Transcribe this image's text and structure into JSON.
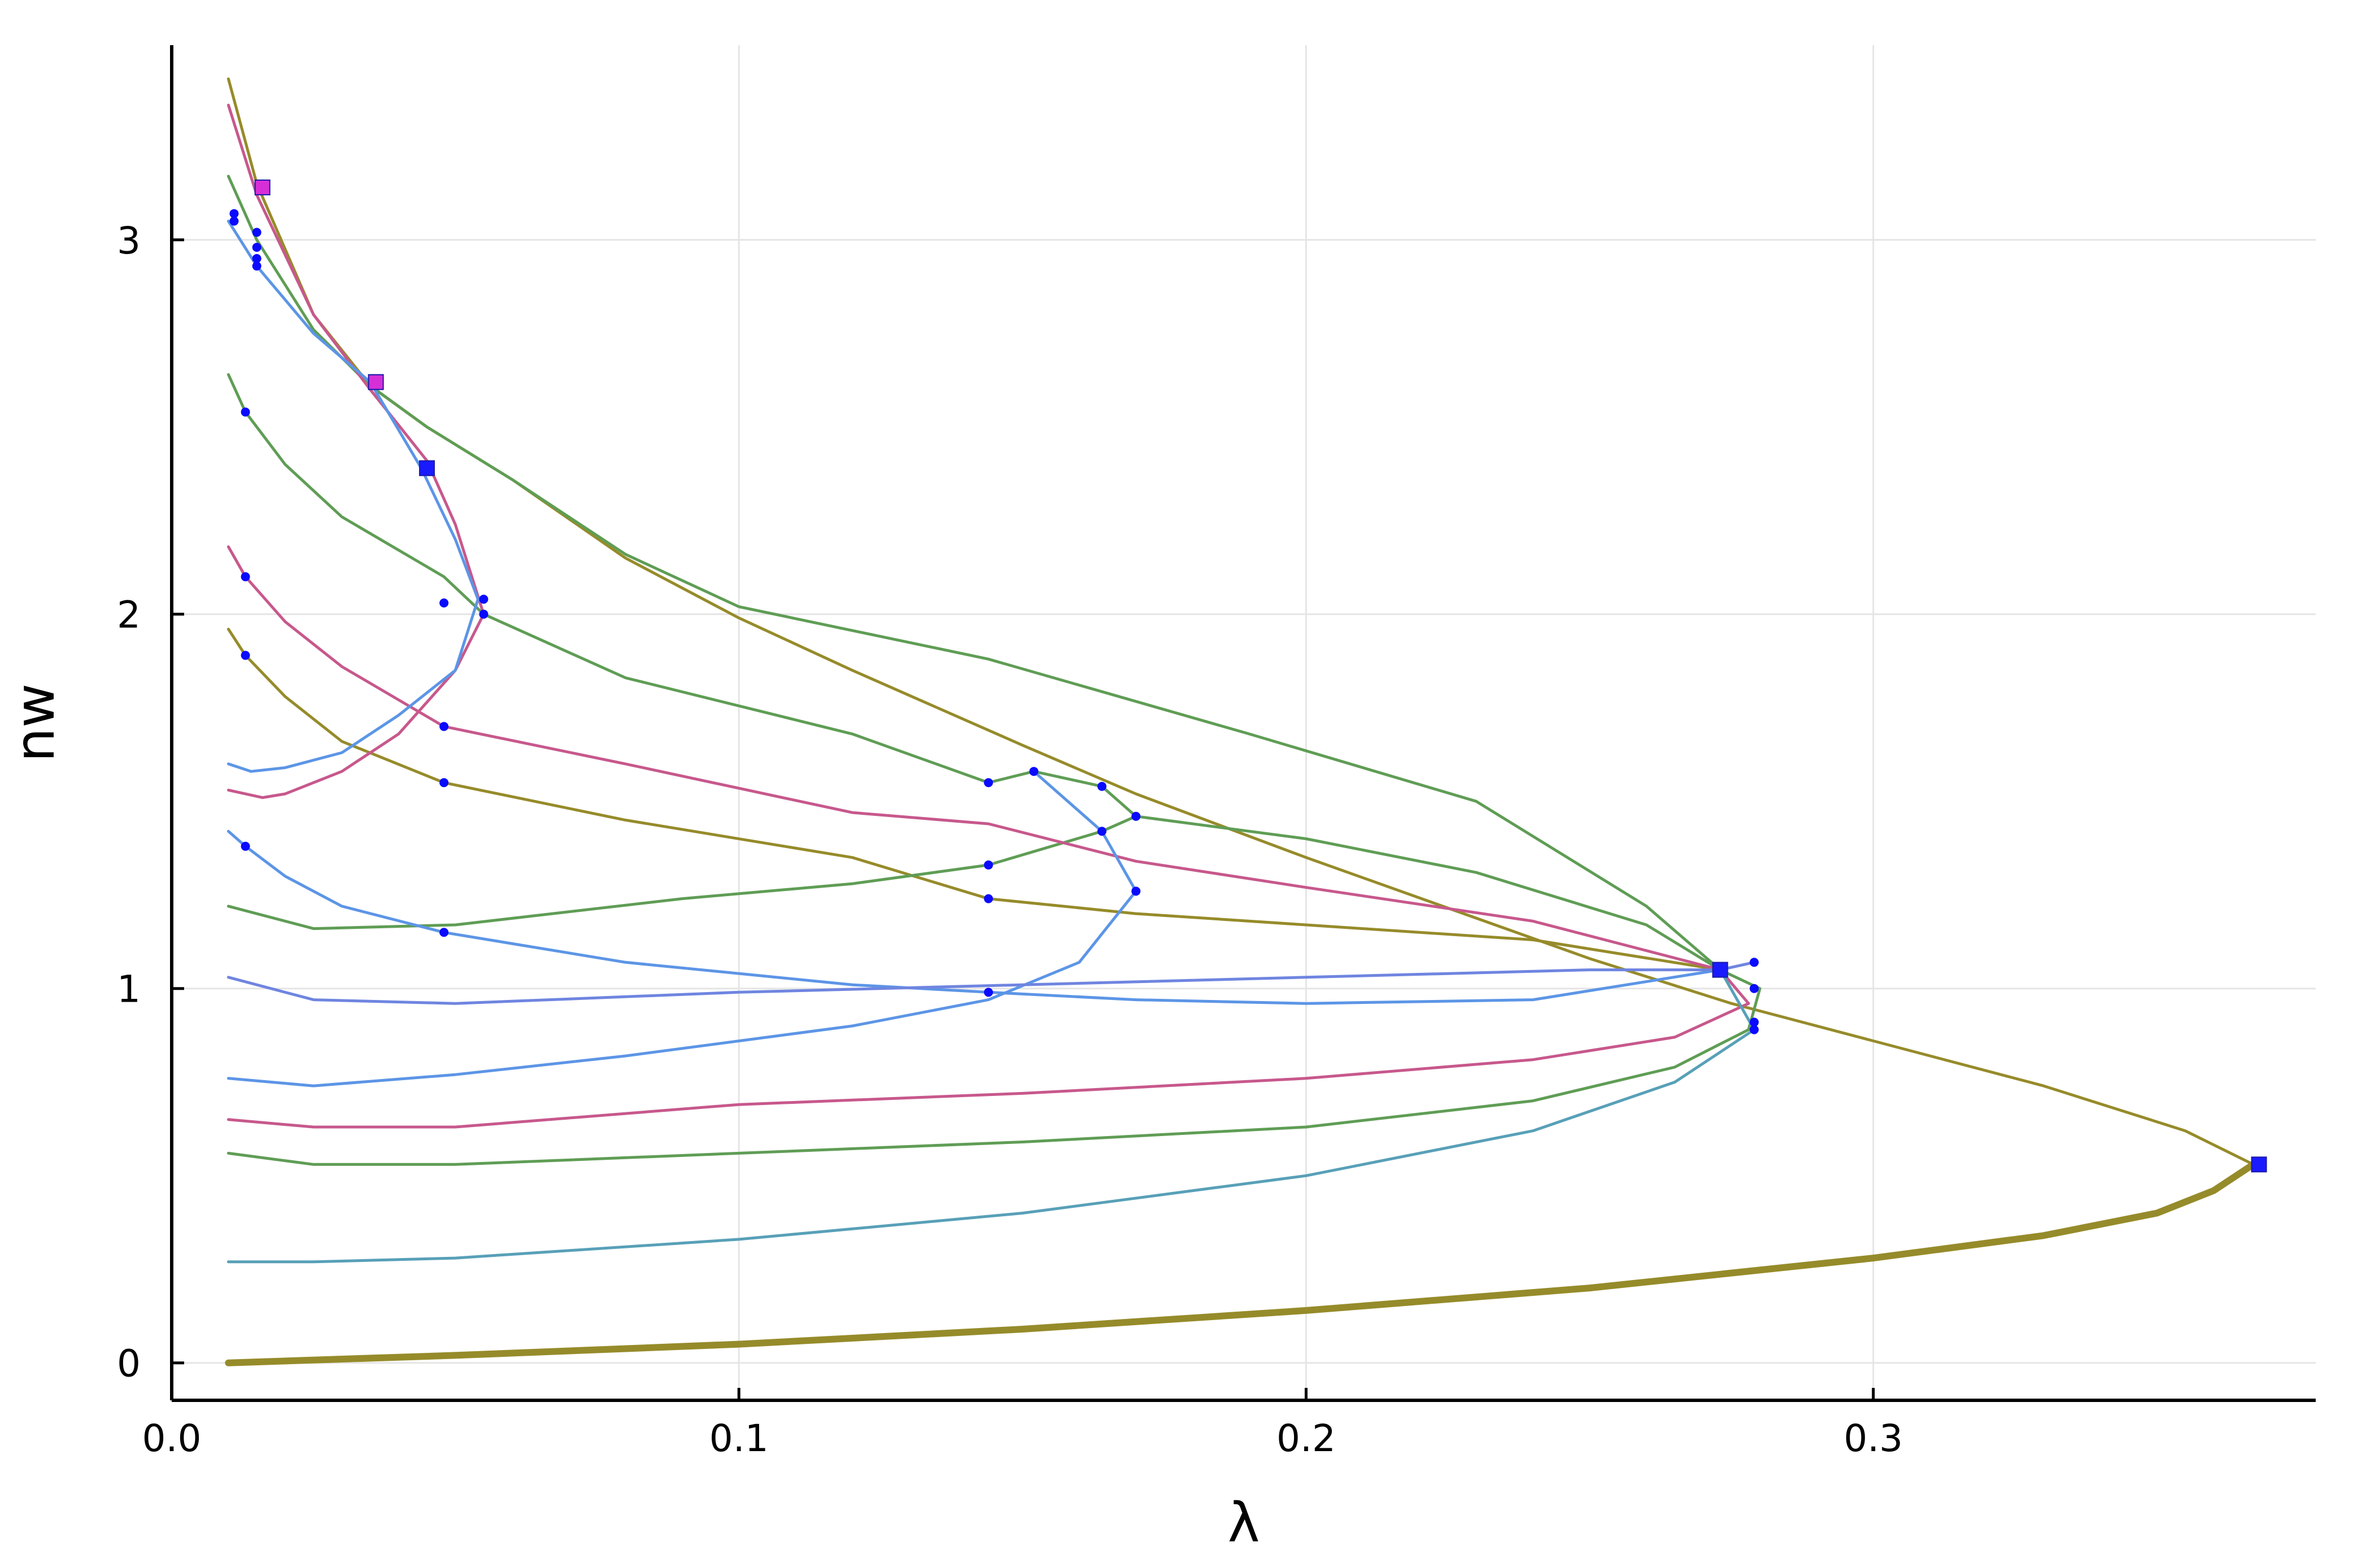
{
  "chart_data": {
    "type": "line",
    "title": "",
    "xlabel": "λ",
    "ylabel": "nw",
    "xlim": [
      0.0,
      0.378
    ],
    "ylim": [
      -0.1,
      3.52
    ],
    "xticks": [
      {
        "value": 0.0,
        "label": "0.0"
      },
      {
        "value": 0.1,
        "label": "0.1"
      },
      {
        "value": 0.2,
        "label": "0.2"
      },
      {
        "value": 0.3,
        "label": "0.3"
      }
    ],
    "yticks": [
      {
        "value": 0,
        "label": "0"
      },
      {
        "value": 1,
        "label": "1"
      },
      {
        "value": 2,
        "label": "2"
      },
      {
        "value": 3,
        "label": "3"
      }
    ],
    "grid": true,
    "legend": "none",
    "series": [
      {
        "color": "#968b2a",
        "width": 12,
        "points": [
          [
            0.01,
            0.0
          ],
          [
            0.05,
            0.02
          ],
          [
            0.1,
            0.05
          ],
          [
            0.15,
            0.09
          ],
          [
            0.2,
            0.14
          ],
          [
            0.25,
            0.2
          ],
          [
            0.3,
            0.28
          ],
          [
            0.33,
            0.34
          ],
          [
            0.35,
            0.4
          ],
          [
            0.36,
            0.46
          ],
          [
            0.367,
            0.53
          ]
        ]
      },
      {
        "color": "#968b2a",
        "width": 5,
        "points": [
          [
            0.367,
            0.53
          ],
          [
            0.355,
            0.62
          ],
          [
            0.33,
            0.74
          ],
          [
            0.3,
            0.86
          ],
          [
            0.275,
            0.96
          ],
          [
            0.25,
            1.08
          ],
          [
            0.2,
            1.35
          ],
          [
            0.17,
            1.52
          ],
          [
            0.15,
            1.65
          ],
          [
            0.12,
            1.85
          ],
          [
            0.1,
            1.99
          ],
          [
            0.08,
            2.15
          ],
          [
            0.06,
            2.36
          ],
          [
            0.045,
            2.5
          ],
          [
            0.035,
            2.61
          ],
          [
            0.025,
            2.8
          ],
          [
            0.015,
            3.15
          ],
          [
            0.01,
            3.43
          ]
        ]
      },
      {
        "color": "#968b2a",
        "width": 5,
        "points": [
          [
            0.01,
            1.96
          ],
          [
            0.013,
            1.89
          ],
          [
            0.02,
            1.78
          ],
          [
            0.03,
            1.66
          ],
          [
            0.048,
            1.55
          ],
          [
            0.08,
            1.45
          ],
          [
            0.12,
            1.35
          ],
          [
            0.144,
            1.24
          ],
          [
            0.17,
            1.2
          ],
          [
            0.2,
            1.17
          ],
          [
            0.24,
            1.13
          ],
          [
            0.273,
            1.05
          ]
        ]
      },
      {
        "color": "#5f9d55",
        "width": 5,
        "points": [
          [
            0.01,
            3.17
          ],
          [
            0.015,
            3.0
          ],
          [
            0.025,
            2.76
          ],
          [
            0.035,
            2.61
          ],
          [
            0.045,
            2.5
          ],
          [
            0.06,
            2.36
          ],
          [
            0.08,
            2.16
          ],
          [
            0.1,
            2.02
          ],
          [
            0.144,
            1.88
          ],
          [
            0.19,
            1.68
          ],
          [
            0.23,
            1.5
          ],
          [
            0.26,
            1.22
          ],
          [
            0.273,
            1.05
          ]
        ]
      },
      {
        "color": "#5f9d55",
        "width": 5,
        "points": [
          [
            0.01,
            2.64
          ],
          [
            0.013,
            2.54
          ],
          [
            0.02,
            2.4
          ],
          [
            0.03,
            2.26
          ],
          [
            0.048,
            2.1
          ],
          [
            0.055,
            2.0
          ],
          [
            0.08,
            1.83
          ],
          [
            0.12,
            1.68
          ],
          [
            0.144,
            1.55
          ],
          [
            0.152,
            1.58
          ],
          [
            0.164,
            1.54
          ],
          [
            0.17,
            1.46
          ],
          [
            0.164,
            1.42
          ],
          [
            0.144,
            1.33
          ],
          [
            0.12,
            1.28
          ],
          [
            0.09,
            1.24
          ],
          [
            0.05,
            1.17
          ],
          [
            0.025,
            1.16
          ],
          [
            0.01,
            1.22
          ]
        ]
      },
      {
        "color": "#5f9d55",
        "width": 5,
        "points": [
          [
            0.17,
            1.46
          ],
          [
            0.2,
            1.4
          ],
          [
            0.23,
            1.31
          ],
          [
            0.26,
            1.17
          ],
          [
            0.273,
            1.05
          ]
        ]
      },
      {
        "color": "#5f9d55",
        "width": 5,
        "points": [
          [
            0.01,
            0.56
          ],
          [
            0.025,
            0.53
          ],
          [
            0.05,
            0.53
          ],
          [
            0.1,
            0.56
          ],
          [
            0.15,
            0.59
          ],
          [
            0.2,
            0.63
          ],
          [
            0.24,
            0.7
          ],
          [
            0.265,
            0.79
          ],
          [
            0.278,
            0.89
          ],
          [
            0.28,
            1.0
          ],
          [
            0.273,
            1.05
          ]
        ]
      },
      {
        "color": "#c7588c",
        "width": 5,
        "points": [
          [
            0.01,
            3.36
          ],
          [
            0.015,
            3.12
          ],
          [
            0.025,
            2.8
          ],
          [
            0.035,
            2.6
          ],
          [
            0.045,
            2.41
          ],
          [
            0.05,
            2.24
          ],
          [
            0.055,
            2.0
          ],
          [
            0.05,
            1.85
          ],
          [
            0.04,
            1.68
          ],
          [
            0.03,
            1.58
          ],
          [
            0.02,
            1.52
          ],
          [
            0.016,
            1.51
          ],
          [
            0.01,
            1.53
          ]
        ]
      },
      {
        "color": "#c7588c",
        "width": 5,
        "points": [
          [
            0.01,
            2.18
          ],
          [
            0.013,
            2.1
          ],
          [
            0.02,
            1.98
          ],
          [
            0.03,
            1.86
          ],
          [
            0.048,
            1.7
          ],
          [
            0.08,
            1.6
          ],
          [
            0.12,
            1.47
          ],
          [
            0.144,
            1.44
          ],
          [
            0.17,
            1.34
          ],
          [
            0.2,
            1.27
          ],
          [
            0.24,
            1.18
          ],
          [
            0.273,
            1.05
          ]
        ]
      },
      {
        "color": "#c7588c",
        "width": 5,
        "points": [
          [
            0.01,
            0.65
          ],
          [
            0.025,
            0.63
          ],
          [
            0.05,
            0.63
          ],
          [
            0.1,
            0.69
          ],
          [
            0.15,
            0.72
          ],
          [
            0.2,
            0.76
          ],
          [
            0.24,
            0.81
          ],
          [
            0.265,
            0.87
          ],
          [
            0.278,
            0.96
          ],
          [
            0.273,
            1.05
          ]
        ]
      },
      {
        "color": "#5c95e6",
        "width": 5,
        "points": [
          [
            0.01,
            3.05
          ],
          [
            0.015,
            2.93
          ],
          [
            0.025,
            2.75
          ],
          [
            0.035,
            2.62
          ],
          [
            0.044,
            2.39
          ],
          [
            0.05,
            2.2
          ],
          [
            0.054,
            2.04
          ],
          [
            0.05,
            1.85
          ],
          [
            0.04,
            1.73
          ],
          [
            0.03,
            1.63
          ],
          [
            0.02,
            1.59
          ],
          [
            0.014,
            1.58
          ],
          [
            0.01,
            1.6
          ]
        ]
      },
      {
        "color": "#5c95e6",
        "width": 5,
        "points": [
          [
            0.01,
            1.42
          ],
          [
            0.013,
            1.38
          ],
          [
            0.02,
            1.3
          ],
          [
            0.03,
            1.22
          ],
          [
            0.048,
            1.15
          ],
          [
            0.08,
            1.07
          ],
          [
            0.12,
            1.01
          ],
          [
            0.144,
            0.99
          ],
          [
            0.17,
            0.97
          ],
          [
            0.2,
            0.96
          ],
          [
            0.24,
            0.97
          ],
          [
            0.273,
            1.05
          ]
        ]
      },
      {
        "color": "#5c95e6",
        "width": 5,
        "points": [
          [
            0.01,
            0.76
          ],
          [
            0.025,
            0.74
          ],
          [
            0.05,
            0.77
          ],
          [
            0.08,
            0.82
          ],
          [
            0.12,
            0.9
          ],
          [
            0.144,
            0.97
          ],
          [
            0.16,
            1.07
          ],
          [
            0.17,
            1.26
          ],
          [
            0.164,
            1.42
          ],
          [
            0.152,
            1.58
          ]
        ]
      },
      {
        "color": "#6f85e0",
        "width": 5,
        "points": [
          [
            0.01,
            1.03
          ],
          [
            0.025,
            0.97
          ],
          [
            0.05,
            0.96
          ],
          [
            0.1,
            0.99
          ],
          [
            0.15,
            1.01
          ],
          [
            0.2,
            1.03
          ],
          [
            0.25,
            1.05
          ],
          [
            0.273,
            1.05
          ],
          [
            0.279,
            1.07
          ]
        ]
      },
      {
        "color": "#58a0b8",
        "width": 5,
        "points": [
          [
            0.01,
            0.27
          ],
          [
            0.025,
            0.27
          ],
          [
            0.05,
            0.28
          ],
          [
            0.1,
            0.33
          ],
          [
            0.15,
            0.4
          ],
          [
            0.2,
            0.5
          ],
          [
            0.24,
            0.62
          ],
          [
            0.265,
            0.75
          ],
          [
            0.279,
            0.89
          ],
          [
            0.273,
            1.05
          ]
        ]
      }
    ],
    "special_points": [
      {
        "x": 0.016,
        "y": 3.14,
        "color": "#d62fd8"
      },
      {
        "x": 0.036,
        "y": 2.62,
        "color": "#1a1aff"
      },
      {
        "x": 0.036,
        "y": 2.62,
        "color": "#d62fd8"
      },
      {
        "x": 0.045,
        "y": 2.39,
        "color": "#1a1aff"
      },
      {
        "x": 0.273,
        "y": 1.05,
        "color": "#d62fd8"
      },
      {
        "x": 0.273,
        "y": 1.05,
        "color": "#1a1aff"
      },
      {
        "x": 0.368,
        "y": 0.53,
        "color": "#1a1aff"
      }
    ],
    "dot_points": [
      [
        0.011,
        3.07
      ],
      [
        0.011,
        3.05
      ],
      [
        0.015,
        3.02
      ],
      [
        0.015,
        2.98
      ],
      [
        0.015,
        2.95
      ],
      [
        0.015,
        2.93
      ],
      [
        0.013,
        2.54
      ],
      [
        0.013,
        2.1
      ],
      [
        0.013,
        1.89
      ],
      [
        0.013,
        1.38
      ],
      [
        0.048,
        2.03
      ],
      [
        0.055,
        2.04
      ],
      [
        0.055,
        2.0
      ],
      [
        0.048,
        1.7
      ],
      [
        0.048,
        1.55
      ],
      [
        0.048,
        1.15
      ],
      [
        0.144,
        1.55
      ],
      [
        0.152,
        1.58
      ],
      [
        0.164,
        1.54
      ],
      [
        0.17,
        1.46
      ],
      [
        0.164,
        1.42
      ],
      [
        0.144,
        1.33
      ],
      [
        0.17,
        1.26
      ],
      [
        0.144,
        1.24
      ],
      [
        0.144,
        0.99
      ],
      [
        0.279,
        1.07
      ],
      [
        0.279,
        1.0
      ],
      [
        0.279,
        0.91
      ],
      [
        0.279,
        0.89
      ]
    ]
  }
}
